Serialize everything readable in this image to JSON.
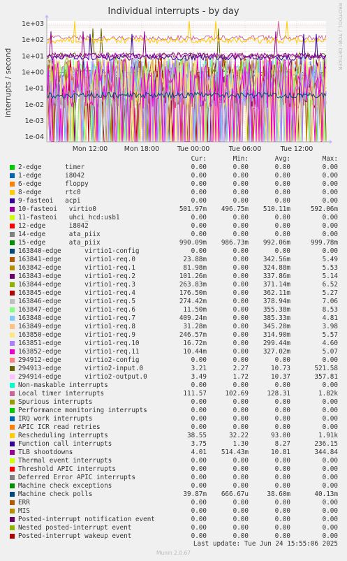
{
  "chart_data": {
    "type": "line",
    "title": "Individual interrupts - by day",
    "ylabel": "interrupts / second",
    "yscale": "log",
    "ylim": [
      5e-05,
      1500
    ],
    "y_ticks": [
      "1e+03",
      "1e+02",
      "1e+01",
      "1e+00",
      "1e-01",
      "1e-02",
      "1e-03",
      "1e-04"
    ],
    "x_ticks": [
      "Mon 12:00",
      "Mon 18:00",
      "Tue 00:00",
      "Tue 06:00",
      "Tue 12:00"
    ],
    "columns": [
      "Cur:",
      "Min:",
      "Avg:",
      "Max:"
    ],
    "series": [
      {
        "name": "2-edge      timer",
        "color": "#00cc00",
        "cur": "0.00",
        "min": "0.00",
        "avg": "0.00",
        "max": "0.00"
      },
      {
        "name": "1-edge      i8042",
        "color": "#0066b3",
        "cur": "0.00",
        "min": "0.00",
        "avg": "0.00",
        "max": "0.00"
      },
      {
        "name": "6-edge      floppy",
        "color": "#ff8000",
        "cur": "0.00",
        "min": "0.00",
        "avg": "0.00",
        "max": "0.00"
      },
      {
        "name": "8-edge      rtc0",
        "color": "#ffcc00",
        "cur": "0.00",
        "min": "0.00",
        "avg": "0.00",
        "max": "0.00"
      },
      {
        "name": "9-fasteoi   acpi",
        "color": "#330099",
        "cur": "0.00",
        "min": "0.00",
        "avg": "0.00",
        "max": "0.00"
      },
      {
        "name": "10-fasteoi   virtio0",
        "color": "#990099",
        "cur": "501.97m",
        "min": "496.75m",
        "avg": "510.11m",
        "max": "592.06m"
      },
      {
        "name": "11-fasteoi   uhci_hcd:usb1",
        "color": "#ccff00",
        "cur": "0.00",
        "min": "0.00",
        "avg": "0.00",
        "max": "0.00"
      },
      {
        "name": "12-edge      i8042",
        "color": "#ff0000",
        "cur": "0.00",
        "min": "0.00",
        "avg": "0.00",
        "max": "0.00"
      },
      {
        "name": "14-edge      ata_piix",
        "color": "#808080",
        "cur": "0.00",
        "min": "0.00",
        "avg": "0.00",
        "max": "0.00"
      },
      {
        "name": "15-edge      ata_piix",
        "color": "#008f00",
        "cur": "990.09m",
        "min": "986.73m",
        "avg": "992.06m",
        "max": "999.78m"
      },
      {
        "name": "163840-edge      virtio1-config",
        "color": "#00487d",
        "cur": "0.00",
        "min": "0.00",
        "avg": "0.00",
        "max": "0.00"
      },
      {
        "name": "163841-edge      virtio1-req.0",
        "color": "#b35a00",
        "cur": "23.88m",
        "min": "0.00",
        "avg": "342.56m",
        "max": "5.49"
      },
      {
        "name": "163842-edge      virtio1-req.1",
        "color": "#b38f00",
        "cur": "81.98m",
        "min": "0.00",
        "avg": "324.88m",
        "max": "5.53"
      },
      {
        "name": "163843-edge      virtio1-req.2",
        "color": "#6b006b",
        "cur": "101.26m",
        "min": "0.00",
        "avg": "337.86m",
        "max": "5.14"
      },
      {
        "name": "163844-edge      virtio1-req.3",
        "color": "#8fb300",
        "cur": "263.83m",
        "min": "0.00",
        "avg": "371.14m",
        "max": "6.52"
      },
      {
        "name": "163845-edge      virtio1-req.4",
        "color": "#b30000",
        "cur": "176.50m",
        "min": "0.00",
        "avg": "362.11m",
        "max": "5.27"
      },
      {
        "name": "163846-edge      virtio1-req.5",
        "color": "#bebebe",
        "cur": "274.42m",
        "min": "0.00",
        "avg": "378.94m",
        "max": "7.06"
      },
      {
        "name": "163847-edge      virtio1-req.6",
        "color": "#80ff80",
        "cur": "11.50m",
        "min": "0.00",
        "avg": "355.38m",
        "max": "8.53"
      },
      {
        "name": "163848-edge      virtio1-req.7",
        "color": "#80c9ff",
        "cur": "409.24m",
        "min": "0.00",
        "avg": "385.33m",
        "max": "4.81"
      },
      {
        "name": "163849-edge      virtio1-req.8",
        "color": "#ffc080",
        "cur": "31.28m",
        "min": "0.00",
        "avg": "345.20m",
        "max": "3.98"
      },
      {
        "name": "163850-edge      virtio1-req.9",
        "color": "#ffe680",
        "cur": "246.57m",
        "min": "0.00",
        "avg": "314.90m",
        "max": "5.57"
      },
      {
        "name": "163851-edge      virtio1-req.10",
        "color": "#aa80ff",
        "cur": "16.72m",
        "min": "0.00",
        "avg": "299.44m",
        "max": "4.60"
      },
      {
        "name": "163852-edge      virtio1-req.11",
        "color": "#ee00cc",
        "cur": "10.44m",
        "min": "0.00",
        "avg": "327.02m",
        "max": "5.07"
      },
      {
        "name": "294912-edge      virtio2-config",
        "color": "#ff8080",
        "cur": "0.00",
        "min": "0.00",
        "avg": "0.00",
        "max": "0.00"
      },
      {
        "name": "294913-edge      virtio2-input.0",
        "color": "#666600",
        "cur": "3.21",
        "min": "2.27",
        "avg": "10.73",
        "max": "521.58"
      },
      {
        "name": "294914-edge      virtio2-output.0",
        "color": "#ffbfff",
        "cur": "3.49",
        "min": "1.72",
        "avg": "10.37",
        "max": "357.81"
      },
      {
        "name": "Non-maskable interrupts",
        "color": "#00ffcc",
        "cur": "0.00",
        "min": "0.00",
        "avg": "0.00",
        "max": "0.00"
      },
      {
        "name": "Local timer interrupts",
        "color": "#cc6699",
        "cur": "111.57",
        "min": "102.69",
        "avg": "128.31",
        "max": "1.82k"
      },
      {
        "name": "Spurious interrupts",
        "color": "#999900",
        "cur": "0.00",
        "min": "0.00",
        "avg": "0.00",
        "max": "0.00"
      },
      {
        "name": "Performance monitoring interrupts",
        "color": "#00cc00",
        "cur": "0.00",
        "min": "0.00",
        "avg": "0.00",
        "max": "0.00"
      },
      {
        "name": "IRQ work interrupts",
        "color": "#0066b3",
        "cur": "0.00",
        "min": "0.00",
        "avg": "0.00",
        "max": "0.00"
      },
      {
        "name": "APIC ICR read retries",
        "color": "#ff8000",
        "cur": "0.00",
        "min": "0.00",
        "avg": "0.00",
        "max": "0.00"
      },
      {
        "name": "Rescheduling interrupts",
        "color": "#ffcc00",
        "cur": "38.55",
        "min": "32.22",
        "avg": "93.00",
        "max": "1.91k"
      },
      {
        "name": "Function call interrupts",
        "color": "#330099",
        "cur": "3.75",
        "min": "1.30",
        "avg": "8.27",
        "max": "236.15"
      },
      {
        "name": "TLB shootdowns",
        "color": "#990099",
        "cur": "4.01",
        "min": "514.43m",
        "avg": "10.81",
        "max": "344.84"
      },
      {
        "name": "Thermal event interrupts",
        "color": "#ccff00",
        "cur": "0.00",
        "min": "0.00",
        "avg": "0.00",
        "max": "0.00"
      },
      {
        "name": "Threshold APIC interrupts",
        "color": "#ff0000",
        "cur": "0.00",
        "min": "0.00",
        "avg": "0.00",
        "max": "0.00"
      },
      {
        "name": "Deferred Error APIC interrupts",
        "color": "#808080",
        "cur": "0.00",
        "min": "0.00",
        "avg": "0.00",
        "max": "0.00"
      },
      {
        "name": "Machine check exceptions",
        "color": "#008f00",
        "cur": "0.00",
        "min": "0.00",
        "avg": "0.00",
        "max": "0.00"
      },
      {
        "name": "Machine check polls",
        "color": "#00487d",
        "cur": "39.87m",
        "min": "666.67u",
        "avg": "38.60m",
        "max": "40.13m"
      },
      {
        "name": "ERR",
        "color": "#b35a00",
        "cur": "0.00",
        "min": "0.00",
        "avg": "0.00",
        "max": "0.00"
      },
      {
        "name": "MIS",
        "color": "#b38f00",
        "cur": "0.00",
        "min": "0.00",
        "avg": "0.00",
        "max": "0.00"
      },
      {
        "name": "Posted-interrupt notification event",
        "color": "#6b006b",
        "cur": "0.00",
        "min": "0.00",
        "avg": "0.00",
        "max": "0.00"
      },
      {
        "name": "Nested posted-interrupt event",
        "color": "#8fb300",
        "cur": "0.00",
        "min": "0.00",
        "avg": "0.00",
        "max": "0.00"
      },
      {
        "name": "Posted-interrupt wakeup event",
        "color": "#b30000",
        "cur": "0.00",
        "min": "0.00",
        "avg": "0.00",
        "max": "0.00"
      }
    ]
  },
  "footer": {
    "last_update": "Last update: Tue Jun 24 15:55:06 2025",
    "munin_version": "Munin 2.0.67",
    "watermark": "RRDTOOL / TOBI OETIKER"
  }
}
